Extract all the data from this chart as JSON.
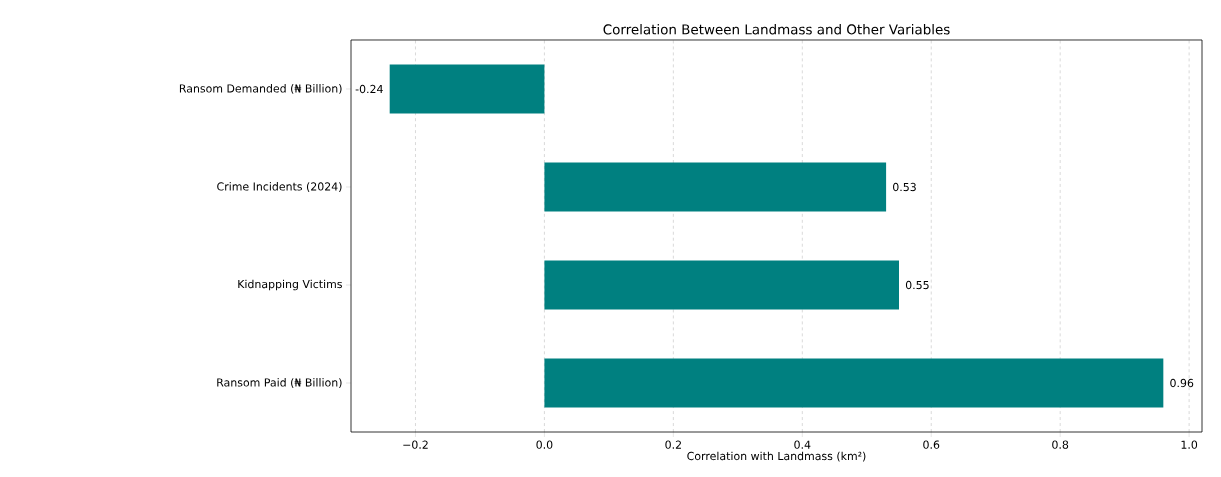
{
  "chart_data": {
    "type": "bar",
    "orientation": "horizontal",
    "title": "Correlation Between Landmass and Other Variables",
    "xlabel": "Correlation with Landmass (km²)",
    "categories": [
      "Ransom Demanded (₦ Billion)",
      "Crime Incidents (2024)",
      "Kidnapping Victims",
      "Ransom Paid (₦ Billion)"
    ],
    "values": [
      -0.24,
      0.53,
      0.55,
      0.96
    ],
    "value_labels": [
      "-0.24",
      "0.53",
      "0.55",
      "0.96"
    ],
    "color": "#008080",
    "xlim": [
      -0.3,
      1.02
    ],
    "xticks": [
      {
        "value": -0.2,
        "label": "−0.2"
      },
      {
        "value": 0,
        "label": "0.0"
      },
      {
        "value": 0.2,
        "label": "0.2"
      },
      {
        "value": 0.4,
        "label": "0.4"
      },
      {
        "value": 0.6,
        "label": "0.6"
      },
      {
        "value": 0.8,
        "label": "0.8"
      },
      {
        "value": 1.0,
        "label": "1.0"
      }
    ],
    "grid": "x"
  }
}
